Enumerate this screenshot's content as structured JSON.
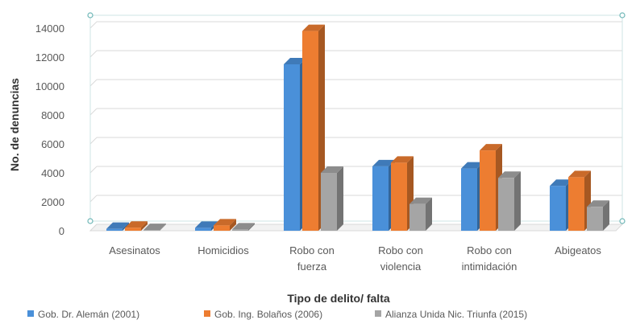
{
  "chart_data": {
    "type": "bar",
    "title": "",
    "xlabel": "Tipo de delito/ falta",
    "ylabel": "No. de denuncias",
    "ylim": [
      0,
      14000
    ],
    "yticks": [
      0,
      2000,
      4000,
      6000,
      8000,
      10000,
      12000,
      14000
    ],
    "grid": true,
    "legend_position": "bottom",
    "categories": [
      [
        "Asesinatos"
      ],
      [
        "Homicidios"
      ],
      [
        "Robo con",
        "fuerza"
      ],
      [
        "Robo con",
        "violencia"
      ],
      [
        "Robo con",
        "intimidación"
      ],
      [
        "Abigeatos"
      ]
    ],
    "series": [
      {
        "name": "Gob. Dr. Alemán (2001)",
        "color": "#4a90d9",
        "values": [
          130,
          200,
          11500,
          4450,
          4300,
          3100
        ]
      },
      {
        "name": "Gob. Ing. Bolaños (2006)",
        "color": "#ed7d31",
        "values": [
          210,
          370,
          13800,
          4700,
          5550,
          3700
        ]
      },
      {
        "name": "Alianza Unida Nic. Triunfa (2015)",
        "color": "#a5a5a5",
        "values": [
          50,
          90,
          4000,
          1850,
          3650,
          1650
        ]
      }
    ]
  }
}
